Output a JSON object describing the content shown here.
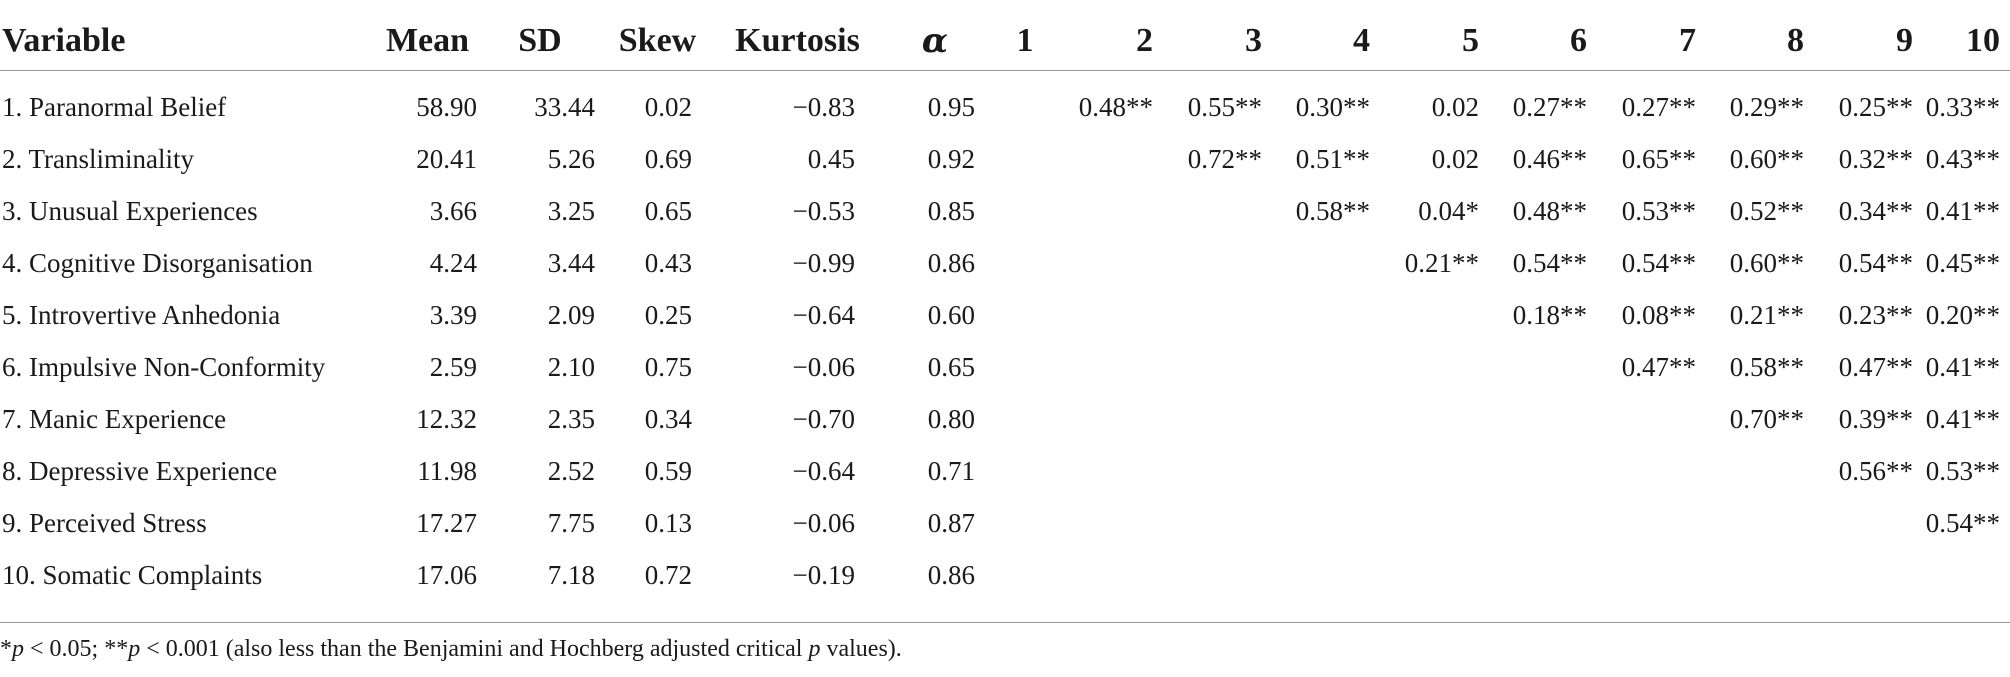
{
  "table": {
    "headers": [
      "Variable",
      "Mean",
      "SD",
      "Skew",
      "Kurtosis",
      "α",
      "1",
      "2",
      "3",
      "4",
      "5",
      "6",
      "7",
      "8",
      "9",
      "10"
    ],
    "rows": [
      [
        "1. Paranormal Belief",
        "58.90",
        "33.44",
        "0.02",
        "−0.83",
        "0.95",
        "",
        "0.48**",
        "0.55**",
        "0.30**",
        "0.02",
        "0.27**",
        "0.27**",
        "0.29**",
        "0.25**",
        "0.33**"
      ],
      [
        "2. Transliminality",
        "20.41",
        "5.26",
        "0.69",
        "0.45",
        "0.92",
        "",
        "",
        "0.72**",
        "0.51**",
        "0.02",
        "0.46**",
        "0.65**",
        "0.60**",
        "0.32**",
        "0.43**"
      ],
      [
        "3. Unusual Experiences",
        "3.66",
        "3.25",
        "0.65",
        "−0.53",
        "0.85",
        "",
        "",
        "",
        "0.58**",
        "0.04*",
        "0.48**",
        "0.53**",
        "0.52**",
        "0.34**",
        "0.41**"
      ],
      [
        "4. Cognitive Disorganisation",
        "4.24",
        "3.44",
        "0.43",
        "−0.99",
        "0.86",
        "",
        "",
        "",
        "",
        "0.21**",
        "0.54**",
        "0.54**",
        "0.60**",
        "0.54**",
        "0.45**"
      ],
      [
        "5. Introvertive Anhedonia",
        "3.39",
        "2.09",
        "0.25",
        "−0.64",
        "0.60",
        "",
        "",
        "",
        "",
        "",
        "0.18**",
        "0.08**",
        "0.21**",
        "0.23**",
        "0.20**"
      ],
      [
        "6. Impulsive Non-Conformity",
        "2.59",
        "2.10",
        "0.75",
        "−0.06",
        "0.65",
        "",
        "",
        "",
        "",
        "",
        "",
        "0.47**",
        "0.58**",
        "0.47**",
        "0.41**"
      ],
      [
        "7. Manic Experience",
        "12.32",
        "2.35",
        "0.34",
        "−0.70",
        "0.80",
        "",
        "",
        "",
        "",
        "",
        "",
        "",
        "0.70**",
        "0.39**",
        "0.41**"
      ],
      [
        "8. Depressive Experience",
        "11.98",
        "2.52",
        "0.59",
        "−0.64",
        "0.71",
        "",
        "",
        "",
        "",
        "",
        "",
        "",
        "",
        "0.56**",
        "0.53**"
      ],
      [
        "9. Perceived Stress",
        "17.27",
        "7.75",
        "0.13",
        "−0.06",
        "0.87",
        "",
        "",
        "",
        "",
        "",
        "",
        "",
        "",
        "",
        "0.54**"
      ],
      [
        "10. Somatic Complaints",
        "17.06",
        "7.18",
        "0.72",
        "−0.19",
        "0.86",
        "",
        "",
        "",
        "",
        "",
        "",
        "",
        "",
        "",
        ""
      ]
    ]
  },
  "note": {
    "p1": "p",
    "t1": " < 0.05; **",
    "p2": "p",
    "t2": " < 0.001 (also less than the Benjamini and Hochberg adjusted critical ",
    "p3": "p",
    "t3": " values).",
    "lead": "*"
  }
}
